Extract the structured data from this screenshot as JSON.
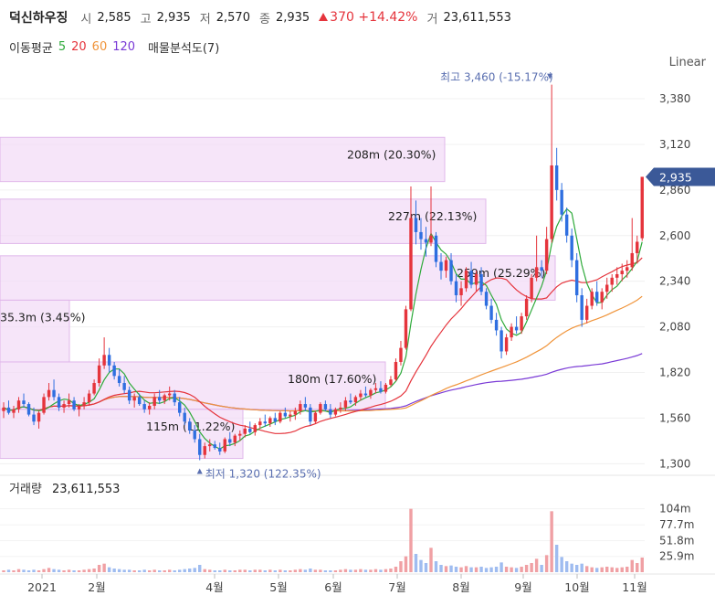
{
  "header": {
    "stock_name": "덕신하우징",
    "open_label": "시",
    "open_value": "2,585",
    "high_label": "고",
    "high_value": "2,935",
    "low_label": "저",
    "low_value": "2,570",
    "close_label": "종",
    "close_value": "2,935",
    "change_value": "370",
    "change_pct": "+14.42%",
    "volume_label": "거",
    "volume_value": "23,611,553"
  },
  "ma_legend": {
    "title": "이동평균",
    "periods": [
      {
        "label": "5",
        "color": "#2eaa3a"
      },
      {
        "label": "20",
        "color": "#e5343c"
      },
      {
        "label": "60",
        "color": "#f0943a"
      },
      {
        "label": "120",
        "color": "#7a3ad6"
      }
    ],
    "analysis_label": "매물분석도(7)"
  },
  "scale_mode": "Linear",
  "chart_data": {
    "type": "candlestick",
    "price_axis": {
      "ticks": [
        "3,380",
        "3,120",
        "2,860",
        "2,600",
        "2,340",
        "2,080",
        "1,820",
        "1,560",
        "1,300"
      ],
      "range": [
        1260,
        3500
      ]
    },
    "time_axis": {
      "ticks": [
        "2021",
        "2월",
        "4월",
        "5월",
        "6월",
        "7월",
        "8월",
        "9월",
        "10월",
        "11월"
      ]
    },
    "current_price": "2,935",
    "high_annotation": "최고 3,460 (-15.17%)",
    "low_annotation": "최저 1,320 (122.35%)",
    "volume_label": "거래량",
    "volume_value": "23,611,553",
    "volume_ticks": [
      "104m",
      "77.7m",
      "51.8m",
      "25.9m"
    ],
    "volume_profile": [
      {
        "label": "208m (20.30%)",
        "price_from": 2908,
        "price_to": 3160
      },
      {
        "label": "227m (22.13%)",
        "price_from": 2555,
        "price_to": 2808
      },
      {
        "label": "259m (25.29%)",
        "price_from": 2232,
        "price_to": 2485
      },
      {
        "label": "35.3m (3.45%)",
        "price_from": 1880,
        "price_to": 2232
      },
      {
        "label": "180m (17.60%)",
        "price_from": 1610,
        "price_to": 1880
      },
      {
        "label": "115m (11.22%)",
        "price_from": 1330,
        "price_to": 1610
      }
    ],
    "ohlc": [
      [
        1600,
        1650,
        1560,
        1620
      ],
      [
        1620,
        1660,
        1580,
        1590
      ],
      [
        1590,
        1630,
        1560,
        1610
      ],
      [
        1610,
        1680,
        1590,
        1660
      ],
      [
        1660,
        1700,
        1620,
        1640
      ],
      [
        1640,
        1650,
        1570,
        1580
      ],
      [
        1580,
        1620,
        1520,
        1540
      ],
      [
        1540,
        1600,
        1500,
        1590
      ],
      [
        1590,
        1700,
        1580,
        1680
      ],
      [
        1680,
        1760,
        1660,
        1720
      ],
      [
        1720,
        1780,
        1660,
        1680
      ],
      [
        1680,
        1700,
        1600,
        1620
      ],
      [
        1620,
        1660,
        1590,
        1640
      ],
      [
        1640,
        1700,
        1620,
        1660
      ],
      [
        1660,
        1680,
        1600,
        1610
      ],
      [
        1610,
        1640,
        1570,
        1630
      ],
      [
        1630,
        1680,
        1610,
        1650
      ],
      [
        1650,
        1720,
        1630,
        1700
      ],
      [
        1700,
        1780,
        1690,
        1760
      ],
      [
        1760,
        1900,
        1740,
        1860
      ],
      [
        1860,
        2020,
        1840,
        1920
      ],
      [
        1920,
        1960,
        1820,
        1860
      ],
      [
        1860,
        1880,
        1780,
        1800
      ],
      [
        1800,
        1840,
        1740,
        1760
      ],
      [
        1760,
        1800,
        1700,
        1720
      ],
      [
        1720,
        1740,
        1640,
        1660
      ],
      [
        1660,
        1700,
        1620,
        1680
      ],
      [
        1680,
        1700,
        1630,
        1640
      ],
      [
        1640,
        1660,
        1590,
        1610
      ],
      [
        1610,
        1650,
        1580,
        1630
      ],
      [
        1630,
        1700,
        1610,
        1680
      ],
      [
        1680,
        1720,
        1640,
        1660
      ],
      [
        1660,
        1700,
        1640,
        1690
      ],
      [
        1690,
        1740,
        1660,
        1700
      ],
      [
        1700,
        1720,
        1630,
        1650
      ],
      [
        1650,
        1680,
        1570,
        1590
      ],
      [
        1590,
        1620,
        1520,
        1540
      ],
      [
        1540,
        1560,
        1470,
        1490
      ],
      [
        1490,
        1520,
        1420,
        1440
      ],
      [
        1440,
        1470,
        1320,
        1350
      ],
      [
        1350,
        1420,
        1330,
        1400
      ],
      [
        1400,
        1440,
        1370,
        1410
      ],
      [
        1410,
        1430,
        1380,
        1390
      ],
      [
        1390,
        1420,
        1350,
        1370
      ],
      [
        1370,
        1450,
        1360,
        1440
      ],
      [
        1440,
        1480,
        1400,
        1420
      ],
      [
        1420,
        1470,
        1400,
        1460
      ],
      [
        1460,
        1490,
        1430,
        1470
      ],
      [
        1470,
        1520,
        1450,
        1500
      ],
      [
        1500,
        1540,
        1470,
        1480
      ],
      [
        1480,
        1530,
        1460,
        1520
      ],
      [
        1520,
        1560,
        1500,
        1540
      ],
      [
        1540,
        1580,
        1510,
        1530
      ],
      [
        1530,
        1570,
        1510,
        1560
      ],
      [
        1560,
        1590,
        1520,
        1540
      ],
      [
        1540,
        1600,
        1530,
        1590
      ],
      [
        1590,
        1620,
        1560,
        1570
      ],
      [
        1570,
        1600,
        1540,
        1580
      ],
      [
        1580,
        1620,
        1550,
        1600
      ],
      [
        1600,
        1660,
        1580,
        1640
      ],
      [
        1640,
        1680,
        1600,
        1620
      ],
      [
        1620,
        1640,
        1520,
        1540
      ],
      [
        1540,
        1600,
        1530,
        1590
      ],
      [
        1590,
        1650,
        1580,
        1640
      ],
      [
        1640,
        1660,
        1600,
        1610
      ],
      [
        1610,
        1640,
        1560,
        1580
      ],
      [
        1580,
        1620,
        1570,
        1610
      ],
      [
        1610,
        1650,
        1590,
        1620
      ],
      [
        1620,
        1680,
        1600,
        1660
      ],
      [
        1660,
        1700,
        1640,
        1650
      ],
      [
        1650,
        1690,
        1630,
        1680
      ],
      [
        1680,
        1720,
        1660,
        1700
      ],
      [
        1700,
        1740,
        1680,
        1690
      ],
      [
        1690,
        1730,
        1670,
        1720
      ],
      [
        1720,
        1760,
        1700,
        1730
      ],
      [
        1730,
        1770,
        1700,
        1710
      ],
      [
        1710,
        1760,
        1700,
        1750
      ],
      [
        1750,
        1800,
        1740,
        1780
      ],
      [
        1780,
        1900,
        1770,
        1880
      ],
      [
        1880,
        2000,
        1860,
        1960
      ],
      [
        1960,
        2200,
        1950,
        2180
      ],
      [
        2180,
        2880,
        2170,
        2700
      ],
      [
        2700,
        2800,
        2550,
        2620
      ],
      [
        2620,
        2700,
        2520,
        2580
      ],
      [
        2580,
        2650,
        2480,
        2560
      ],
      [
        2560,
        2880,
        2540,
        2600
      ],
      [
        2600,
        2620,
        2420,
        2450
      ],
      [
        2450,
        2500,
        2350,
        2400
      ],
      [
        2400,
        2480,
        2360,
        2460
      ],
      [
        2460,
        2500,
        2320,
        2340
      ],
      [
        2340,
        2380,
        2220,
        2260
      ],
      [
        2260,
        2340,
        2200,
        2300
      ],
      [
        2300,
        2420,
        2280,
        2400
      ],
      [
        2400,
        2450,
        2300,
        2320
      ],
      [
        2320,
        2400,
        2280,
        2380
      ],
      [
        2380,
        2420,
        2260,
        2280
      ],
      [
        2280,
        2300,
        2180,
        2200
      ],
      [
        2200,
        2240,
        2100,
        2120
      ],
      [
        2120,
        2160,
        2030,
        2060
      ],
      [
        2060,
        2080,
        1900,
        1940
      ],
      [
        1940,
        2040,
        1920,
        2020
      ],
      [
        2020,
        2100,
        2000,
        2080
      ],
      [
        2080,
        2140,
        2040,
        2060
      ],
      [
        2060,
        2160,
        2040,
        2140
      ],
      [
        2140,
        2260,
        2120,
        2240
      ],
      [
        2240,
        2380,
        2220,
        2360
      ],
      [
        2360,
        2600,
        2340,
        2420
      ],
      [
        2420,
        2460,
        2360,
        2400
      ],
      [
        2400,
        2650,
        2380,
        2580
      ],
      [
        2580,
        3460,
        2560,
        3000
      ],
      [
        3000,
        3100,
        2800,
        2860
      ],
      [
        2860,
        2900,
        2680,
        2720
      ],
      [
        2720,
        2760,
        2560,
        2600
      ],
      [
        2600,
        2640,
        2420,
        2460
      ],
      [
        2460,
        2500,
        2220,
        2260
      ],
      [
        2260,
        2300,
        2080,
        2120
      ],
      [
        2120,
        2240,
        2100,
        2200
      ],
      [
        2200,
        2300,
        2180,
        2280
      ],
      [
        2280,
        2340,
        2200,
        2220
      ],
      [
        2220,
        2300,
        2180,
        2280
      ],
      [
        2280,
        2360,
        2240,
        2320
      ],
      [
        2320,
        2380,
        2280,
        2360
      ],
      [
        2360,
        2420,
        2320,
        2380
      ],
      [
        2380,
        2440,
        2340,
        2400
      ],
      [
        2400,
        2460,
        2360,
        2420
      ],
      [
        2420,
        2700,
        2400,
        2500
      ],
      [
        2500,
        2600,
        2440,
        2565
      ],
      [
        2585,
        2935,
        2570,
        2935
      ]
    ],
    "volumes_m": [
      3,
      4,
      3,
      5,
      4,
      3,
      4,
      3,
      5,
      7,
      5,
      4,
      3,
      4,
      3,
      3,
      4,
      5,
      6,
      12,
      14,
      8,
      6,
      5,
      4,
      4,
      3,
      3,
      4,
      3,
      4,
      3,
      3,
      4,
      3,
      4,
      5,
      6,
      7,
      12,
      5,
      4,
      3,
      3,
      4,
      3,
      3,
      4,
      4,
      3,
      4,
      4,
      3,
      4,
      3,
      4,
      3,
      3,
      4,
      5,
      4,
      6,
      4,
      4,
      3,
      3,
      3,
      4,
      5,
      4,
      4,
      5,
      4,
      4,
      5,
      4,
      5,
      6,
      9,
      18,
      26,
      104,
      30,
      20,
      15,
      40,
      18,
      12,
      10,
      11,
      9,
      8,
      10,
      8,
      8,
      9,
      7,
      8,
      9,
      16,
      9,
      8,
      7,
      9,
      12,
      15,
      22,
      12,
      28,
      100,
      45,
      25,
      18,
      14,
      12,
      14,
      10,
      8,
      7,
      8,
      9,
      8,
      7,
      8,
      9,
      20,
      15,
      24
    ]
  }
}
